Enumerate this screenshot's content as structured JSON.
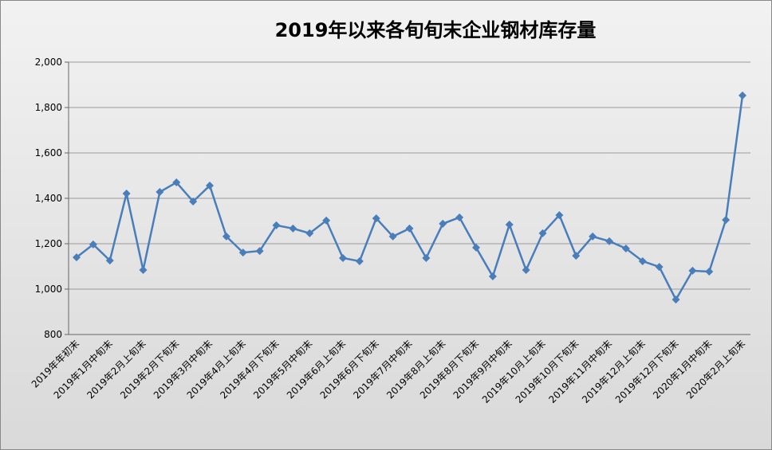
{
  "chart_data": {
    "type": "line",
    "title": "2019年以来各旬旬末企业钢材库存量",
    "categories": [
      "2019年年初末",
      null,
      "2019年1月中旬末",
      null,
      "2019年2月上旬末",
      null,
      "2019年2月下旬末",
      null,
      "2019年3月中旬末",
      null,
      "2019年4月上旬末",
      null,
      "2019年4月下旬末",
      null,
      "2019年5月中旬末",
      null,
      "2019年6月上旬末",
      null,
      "2019年6月下旬末",
      null,
      "2019年7月中旬末",
      null,
      "2019年8月上旬末",
      null,
      "2019年8月下旬末",
      null,
      "2019年9月中旬末",
      null,
      "2019年10月上旬末",
      null,
      "2019年10月下旬末",
      null,
      "2019年11月中旬末",
      null,
      "2019年12月上旬末",
      null,
      "2019年12月下旬末",
      null,
      "2020年1月中旬末",
      null,
      "2020年2月上旬末"
    ],
    "values": [
      1140,
      1197,
      1126,
      1421,
      1084,
      1428,
      1470,
      1386,
      1456,
      1232,
      1161,
      1168,
      1281,
      1267,
      1246,
      1302,
      1137,
      1123,
      1312,
      1232,
      1267,
      1137,
      1288,
      1316,
      1183,
      1056,
      1284,
      1084,
      1246,
      1326,
      1147,
      1232,
      1211,
      1179,
      1123,
      1098,
      954,
      1081,
      1077,
      1305,
      1853
    ],
    "color": "#4a7ebb",
    "ylim": [
      800,
      2000
    ],
    "yticks": [
      800,
      {
        "value": 1000,
        "label": "1,000"
      },
      {
        "value": 1200,
        "label": "1,200"
      },
      {
        "value": 1400,
        "label": "1,400"
      },
      {
        "value": 1600,
        "label": "1,600"
      },
      {
        "value": 1800,
        "label": "1,800"
      },
      {
        "value": 2000,
        "label": "2,000"
      }
    ],
    "grid": true
  }
}
